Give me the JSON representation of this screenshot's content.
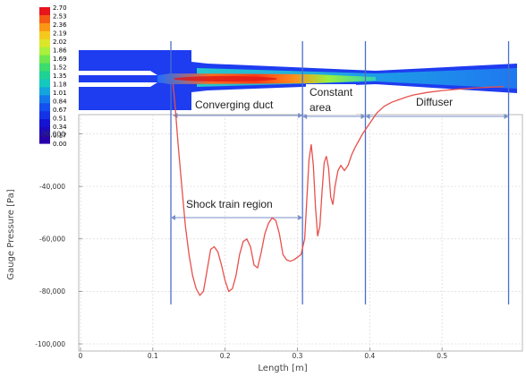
{
  "chart_data": {
    "type": "line",
    "xlabel": "Length [m]",
    "ylabel": "Gauge Pressure [Pa]",
    "xlim": [
      0,
      0.6
    ],
    "ylim": [
      -100000,
      0
    ],
    "x_ticks": [
      "0",
      "0.1",
      "0.2",
      "0.3",
      "0.4",
      "0.5"
    ],
    "y_ticks": [
      "-20,000",
      "-40,000",
      "-60,000",
      "-80,000",
      "-100,000"
    ],
    "grid": true,
    "line_color": "#e8504c",
    "series": [
      {
        "x": [
          0.128,
          0.131,
          0.135,
          0.14,
          0.145,
          0.15,
          0.155,
          0.16,
          0.165,
          0.17,
          0.175,
          0.18,
          0.185,
          0.19,
          0.195,
          0.2,
          0.205,
          0.21,
          0.215,
          0.22,
          0.225,
          0.23,
          0.235,
          0.24,
          0.245,
          0.25,
          0.255,
          0.26,
          0.265,
          0.27,
          0.275,
          0.28,
          0.285,
          0.29,
          0.295,
          0.3,
          0.305,
          0.31,
          0.313,
          0.316,
          0.319,
          0.322,
          0.325,
          0.328,
          0.331,
          0.334,
          0.337,
          0.34,
          0.343,
          0.346,
          0.349,
          0.352,
          0.356,
          0.36,
          0.365,
          0.37,
          0.375,
          0.38,
          0.39,
          0.4,
          0.41,
          0.42,
          0.43,
          0.44,
          0.45,
          0.46,
          0.48,
          0.5,
          0.52,
          0.54,
          0.56,
          0.585
        ],
        "y": [
          -1000,
          -10000,
          -24000,
          -40000,
          -55000,
          -66000,
          -74000,
          -79000,
          -81500,
          -80000,
          -72000,
          -64000,
          -63000,
          -65000,
          -70000,
          -76000,
          -80000,
          -79000,
          -74000,
          -66000,
          -61000,
          -60000,
          -63000,
          -70000,
          -71000,
          -65000,
          -58000,
          -54000,
          -52000,
          -53000,
          -58000,
          -66000,
          -68000,
          -68500,
          -68000,
          -67000,
          -66000,
          -60000,
          -45000,
          -30000,
          -24000,
          -32000,
          -48000,
          -59000,
          -55000,
          -42000,
          -31000,
          -28500,
          -33000,
          -44000,
          -47000,
          -40000,
          -34000,
          -32000,
          -34000,
          -32000,
          -28000,
          -25000,
          -20000,
          -16000,
          -12000,
          -9500,
          -8000,
          -7000,
          -6000,
          -5200,
          -4200,
          -3500,
          -3000,
          -2600,
          -2300,
          -2000
        ]
      }
    ],
    "region_lines_x": [
      0.125,
      0.307,
      0.394,
      0.592
    ],
    "regions": [
      {
        "label": "Converging duct",
        "from": 0.128,
        "to": 0.307
      },
      {
        "label": "Constant area",
        "from": 0.307,
        "to": 0.394
      },
      {
        "label": "Diffuser",
        "from": 0.394,
        "to": 0.592
      },
      {
        "label": "Shock train region",
        "from": 0.125,
        "to": 0.307
      }
    ]
  },
  "colorbar": {
    "labels": [
      "2.70",
      "2.53",
      "2.36",
      "2.19",
      "2.02",
      "1.86",
      "1.69",
      "1.52",
      "1.35",
      "1.18",
      "1.01",
      "0.84",
      "0.67",
      "0.51",
      "0.34",
      "0.17",
      "0.00"
    ],
    "colors": [
      "#e8141c",
      "#f45a14",
      "#fb9614",
      "#f5c81e",
      "#dce628",
      "#aaf03c",
      "#6ee650",
      "#3cdc6e",
      "#1ed296",
      "#14c8be",
      "#14a5dc",
      "#1478eb",
      "#1450f0",
      "#1432e6",
      "#1414d2",
      "#1e0abe",
      "#2800aa"
    ]
  },
  "labels": {
    "converging_duct": "Converging duct",
    "constant_area_1": "Constant",
    "constant_area_2": "area",
    "diffuser": "Diffuser",
    "shock_train": "Shock train region"
  }
}
